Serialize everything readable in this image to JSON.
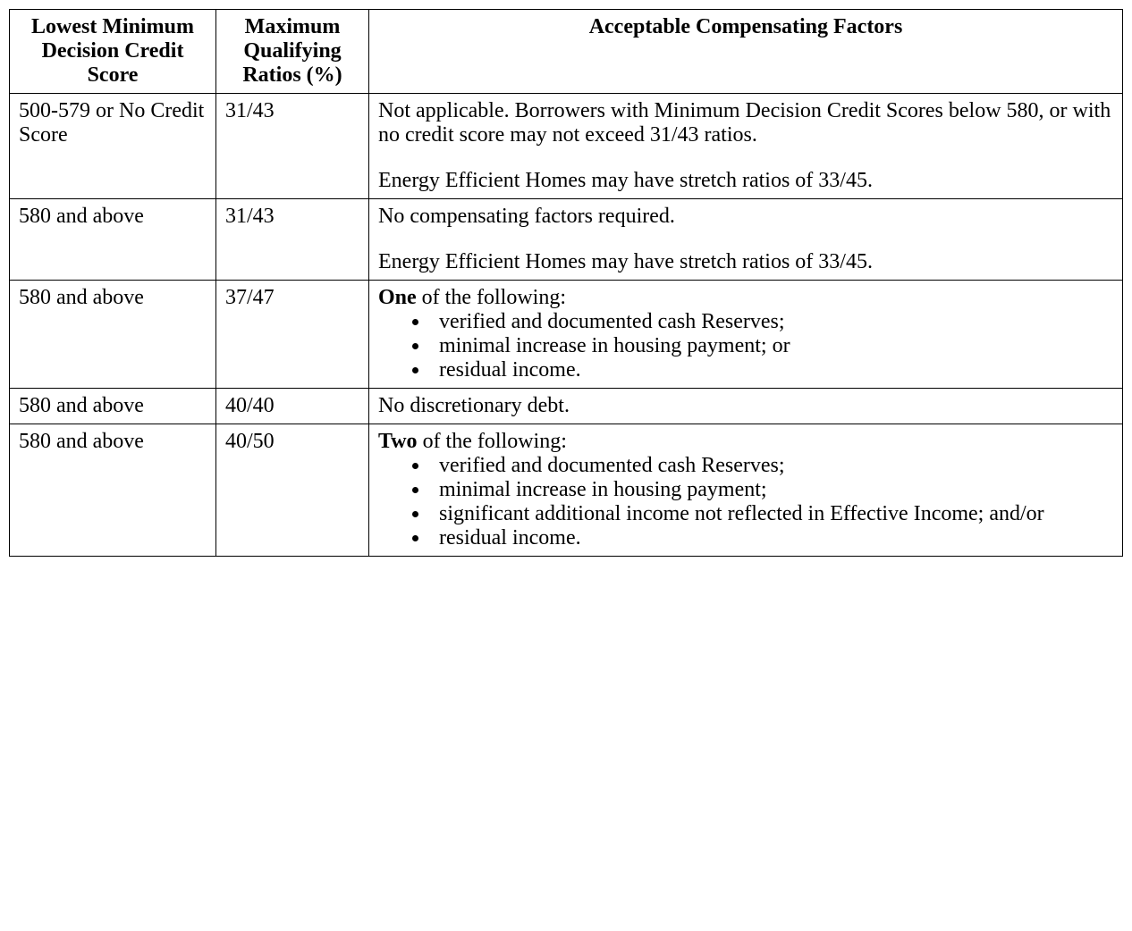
{
  "table": {
    "headers": {
      "col1": "Lowest Minimum Decision Credit Score",
      "col2": "Maximum Qualifying Ratios (%)",
      "col3": "Acceptable Compensating Factors"
    },
    "rows": [
      {
        "score": "500-579 or No Credit Score",
        "ratio": "31/43",
        "factors_paras": [
          "Not applicable. Borrowers with Minimum Decision Credit Scores below 580, or with no credit score may not exceed 31/43 ratios.",
          "Energy Efficient Homes may have stretch ratios of 33/45."
        ]
      },
      {
        "score": "580 and above",
        "ratio": "31/43",
        "factors_paras": [
          "No compensating factors required.",
          "Energy Efficient Homes may have stretch ratios of 33/45."
        ]
      },
      {
        "score": "580 and above",
        "ratio": "37/47",
        "factors_lead_bold": "One",
        "factors_lead_rest": " of the following:",
        "factors_bullets": [
          "verified and documented cash Reserves;",
          "minimal increase in housing payment; or",
          "residual income."
        ]
      },
      {
        "score": "580 and above",
        "ratio": "40/40",
        "factors_paras": [
          "No discretionary debt."
        ]
      },
      {
        "score": "580 and above",
        "ratio": "40/50",
        "factors_lead_bold": "Two",
        "factors_lead_rest": " of the following:",
        "factors_bullets": [
          "verified and documented cash Reserves;",
          "minimal increase in housing payment;",
          "significant additional income not reflected in Effective Income; and/or",
          "residual income."
        ]
      }
    ]
  }
}
